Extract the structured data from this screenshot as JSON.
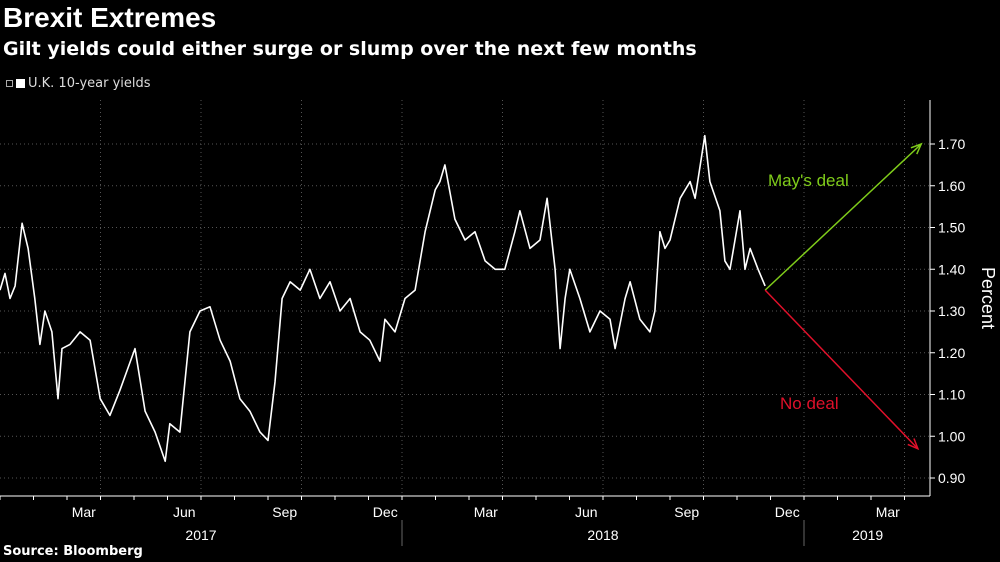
{
  "title": "Brexit Extremes",
  "subtitle": "Gilt yields could either surge or slump over the next few months",
  "source": "Source: Bloomberg",
  "colors": {
    "line": "#ffffff",
    "deal": "#7fcc1a",
    "nodeal": "#e0102a"
  },
  "chart_data": {
    "type": "line",
    "legend": [
      "U.K. 10-year yields"
    ],
    "ylabel": "Percent",
    "ylim": [
      0.87,
      1.77
    ],
    "yticks": [
      0.9,
      1.0,
      1.1,
      1.2,
      1.3,
      1.4,
      1.5,
      1.6,
      1.7
    ],
    "ytick_labels": [
      "0.90",
      "1.00",
      "1.10",
      "1.20",
      "1.30",
      "1.40",
      "1.50",
      "1.60",
      "1.70"
    ],
    "x_unit": "months since Jan 2017",
    "xlim": [
      0,
      27.8
    ],
    "month_ticks": [
      {
        "label": "Mar",
        "m": 2
      },
      {
        "label": "Jun",
        "m": 5
      },
      {
        "label": "Sep",
        "m": 8
      },
      {
        "label": "Dec",
        "m": 11
      },
      {
        "label": "Mar",
        "m": 14
      },
      {
        "label": "Jun",
        "m": 17
      },
      {
        "label": "Sep",
        "m": 20
      },
      {
        "label": "Dec",
        "m": 23
      },
      {
        "label": "Mar",
        "m": 26
      }
    ],
    "year_labels": [
      {
        "label": "2017",
        "start": 0,
        "end": 12
      },
      {
        "label": "2018",
        "start": 12,
        "end": 24
      },
      {
        "label": "2019",
        "start": 24,
        "end": 27.8
      }
    ],
    "series": [
      {
        "name": "U.K. 10-year yields",
        "x": [
          0,
          0.15,
          0.3,
          0.45,
          0.66,
          0.84,
          1.04,
          1.19,
          1.34,
          1.55,
          1.73,
          1.85,
          2.09,
          2.39,
          2.69,
          2.99,
          3.28,
          3.58,
          4.03,
          4.33,
          4.63,
          4.93,
          5.07,
          5.37,
          5.67,
          5.97,
          6.27,
          6.57,
          6.87,
          7.16,
          7.46,
          7.76,
          8.0,
          8.21,
          8.42,
          8.66,
          8.96,
          9.25,
          9.55,
          9.85,
          10.15,
          10.45,
          10.75,
          11.04,
          11.34,
          11.49,
          11.79,
          12.09,
          12.39,
          12.69,
          12.99,
          13.13,
          13.28,
          13.58,
          13.88,
          14.18,
          14.48,
          14.78,
          15.07,
          15.37,
          15.52,
          15.82,
          16.12,
          16.33,
          16.57,
          16.72,
          16.87,
          17.01,
          17.31,
          17.61,
          17.91,
          18.21,
          18.36,
          18.66,
          18.81,
          19.1,
          19.4,
          19.55,
          19.7,
          19.85,
          20.0,
          20.3,
          20.6,
          20.75,
          21.04,
          21.19,
          21.49,
          21.64,
          21.79,
          22.09,
          22.24,
          22.39,
          22.63,
          22.84
        ],
        "values": [
          1.35,
          1.39,
          1.33,
          1.36,
          1.51,
          1.45,
          1.33,
          1.22,
          1.3,
          1.25,
          1.09,
          1.21,
          1.22,
          1.25,
          1.23,
          1.09,
          1.05,
          1.11,
          1.21,
          1.06,
          1.01,
          0.94,
          1.03,
          1.01,
          1.25,
          1.3,
          1.31,
          1.23,
          1.18,
          1.09,
          1.06,
          1.01,
          0.99,
          1.13,
          1.33,
          1.37,
          1.35,
          1.4,
          1.33,
          1.37,
          1.3,
          1.33,
          1.25,
          1.23,
          1.18,
          1.28,
          1.25,
          1.33,
          1.35,
          1.49,
          1.59,
          1.61,
          1.65,
          1.52,
          1.47,
          1.49,
          1.42,
          1.4,
          1.4,
          1.49,
          1.54,
          1.45,
          1.47,
          1.57,
          1.4,
          1.21,
          1.33,
          1.4,
          1.33,
          1.25,
          1.3,
          1.28,
          1.21,
          1.33,
          1.37,
          1.28,
          1.25,
          1.3,
          1.49,
          1.45,
          1.47,
          1.57,
          1.61,
          1.57,
          1.72,
          1.61,
          1.54,
          1.42,
          1.4,
          1.54,
          1.4,
          1.45,
          1.4,
          1.36
        ]
      }
    ],
    "annotations": [
      {
        "label": "May's deal",
        "from": [
          22.84,
          1.35
        ],
        "to": [
          27.5,
          1.7
        ],
        "color": "#7fcc1a"
      },
      {
        "label": "No deal",
        "from": [
          22.84,
          1.35
        ],
        "to": [
          27.4,
          0.97
        ],
        "color": "#e0102a"
      }
    ]
  }
}
